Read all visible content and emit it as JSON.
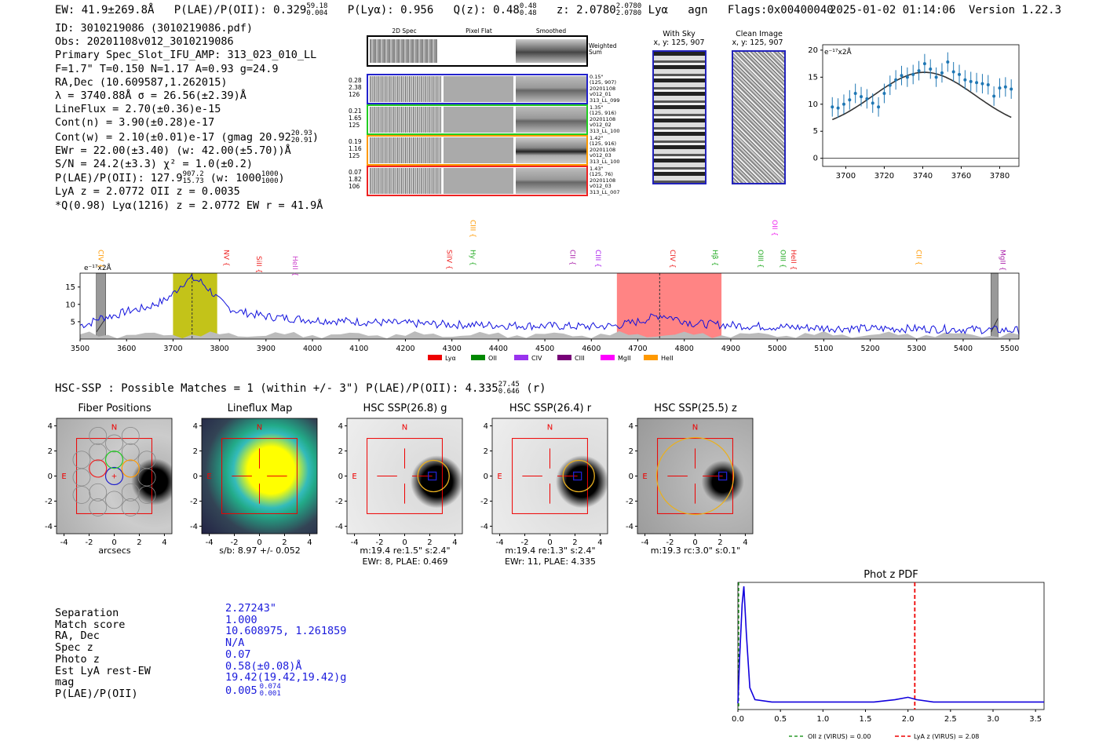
{
  "header": {
    "ew": "EW: 41.9±269.8Å",
    "plae_label": "P(LAE)/P(OII): 0.329",
    "plae_hi": "59.18",
    "plae_lo": "0.004",
    "plya": "P(Lyα): 0.956",
    "qz_label": "Q(z): 0.48",
    "qz_hi": "0.48",
    "qz_lo": "0.48",
    "z_label": "z: 2.0780",
    "z_hi": "2.0780",
    "z_lo": "2.0780",
    "line": "Lyα",
    "agn": "agn",
    "flags": "Flags:0x00400040",
    "datetime": "2025-01-02 01:14:06",
    "version": "Version 1.22.3"
  },
  "info": {
    "l1": "ID: 3010219086 (3010219086.pdf)",
    "l2": "Obs: 20201108v012_3010219086",
    "l3": "Primary Spec_Slot_IFU_AMP: 313_023_010_LL",
    "l4": "F=1.7\"  T=0.150  N=1.17  A=0.93  g=24.9",
    "l5": "RA,Dec (10.609587,1.262015)",
    "l6": "λ = 3740.88Å  σ = 26.56(±2.39)Å",
    "l7": "LineFlux = 2.70(±0.36)e-15",
    "l8": "Cont(n) = 3.90(±0.28)e-17",
    "l9": "Cont(w) = 2.10(±0.01)e-17 (gmag 20.92",
    "l9_hi": "20.93",
    "l9_lo": "20.91",
    "l10": "EWr = 22.00(±3.40) (w: 42.00(±5.70))Å",
    "l11": "S/N = 24.2(±3.3)  χ² = 1.0(±0.2)",
    "l12": "P(LAE)/P(OII): 127.9",
    "l12_hi": "907.2",
    "l12_lo": "15.73",
    "l12_w": "(w: 1000",
    "l12_whi": "1000",
    "l12_wlo": "1000",
    "l13": "LyA z = 2.0772  OII z = 0.0035",
    "l14": "*Q(0.98) Lyα(1216) z = 2.0772  EW r = 41.9Å"
  },
  "spec2d": {
    "col1": "2D Spec",
    "col2": "Pixel Flat",
    "col3": "Smoothed",
    "weighted": "Weighted\nSum",
    "rows": [
      {
        "color": "#2222cc",
        "left": [
          "0.28",
          "2.38",
          "126"
        ],
        "right": [
          "0.15\"",
          "(125, 907)",
          "20201108",
          "v012_01",
          "313_LL_099"
        ]
      },
      {
        "color": "#22cc22",
        "left": [
          "0.21",
          "1.65",
          "125"
        ],
        "right": [
          "1.35\"",
          "(125, 916)",
          "20201108",
          "v012_02",
          "313_LL_100"
        ]
      },
      {
        "color": "#ff9900",
        "left": [
          "0.19",
          "1.16",
          "125"
        ],
        "right": [
          "1.42\"",
          "(125, 916)",
          "20201108",
          "v012_03",
          "313_LL_100"
        ]
      },
      {
        "color": "#ee2222",
        "left": [
          "0.07",
          "1.82",
          "106"
        ],
        "right": [
          "1.43\"",
          "(125, 76)",
          "20201108",
          "v012_03",
          "313_LL_007"
        ]
      }
    ]
  },
  "skyimg": {
    "with_sky_title": "With Sky",
    "with_sky_xy": "x, y: 125, 907",
    "clean_title": "Clean Image",
    "clean_xy": "x, y: 125, 907"
  },
  "zoom_chart": {
    "ylabel": "e⁻¹⁷x2Å",
    "xticks": [
      "3700",
      "3720",
      "3740",
      "3760",
      "3780"
    ],
    "yticks": [
      "0",
      "5",
      "10",
      "15",
      "20"
    ]
  },
  "chart_data": [
    {
      "type": "scatter",
      "xlim": [
        3688,
        3790
      ],
      "ylim": [
        -1.5,
        21
      ],
      "x": [
        3693,
        3696,
        3699,
        3702,
        3705,
        3708,
        3711,
        3714,
        3717,
        3720,
        3723,
        3726,
        3729,
        3732,
        3735,
        3738,
        3741,
        3744,
        3747,
        3750,
        3753,
        3756,
        3759,
        3762,
        3765,
        3768,
        3771,
        3774,
        3777,
        3780,
        3783,
        3786
      ],
      "y": [
        9.5,
        9.3,
        10.0,
        10.8,
        12.0,
        11.4,
        11.0,
        10.2,
        9.5,
        12.0,
        13.5,
        14.5,
        15.3,
        15.0,
        15.5,
        16.2,
        17.5,
        16.5,
        15.0,
        15.8,
        17.8,
        16.0,
        15.5,
        14.5,
        14.2,
        14.0,
        13.8,
        13.6,
        11.5,
        13.0,
        13.2,
        12.8
      ],
      "yerr": 1.8,
      "model": {
        "center": 3740.88,
        "sigma": 26.56,
        "peak": 15.9,
        "base": 5.0
      }
    },
    {
      "type": "line",
      "xlim": [
        3500,
        5520
      ],
      "ylim": [
        0,
        19
      ],
      "xticks": [
        3500,
        3600,
        3700,
        3800,
        3900,
        4000,
        4100,
        4200,
        4300,
        4400,
        4500,
        4600,
        4700,
        4800,
        4900,
        5000,
        5100,
        5200,
        5300,
        5400,
        5500
      ],
      "yticks": [
        5,
        10,
        15
      ],
      "ylabel": "e⁻¹⁷x2Å",
      "spectrum": [
        [
          3500,
          4
        ],
        [
          3520,
          4.5
        ],
        [
          3540,
          6
        ],
        [
          3560,
          6.5
        ],
        [
          3580,
          7
        ],
        [
          3600,
          8
        ],
        [
          3620,
          8.5
        ],
        [
          3640,
          9
        ],
        [
          3660,
          10
        ],
        [
          3680,
          11
        ],
        [
          3700,
          13
        ],
        [
          3720,
          16
        ],
        [
          3740,
          17.5
        ],
        [
          3760,
          16.5
        ],
        [
          3780,
          14
        ],
        [
          3800,
          11
        ],
        [
          3820,
          9
        ],
        [
          3840,
          8
        ],
        [
          3860,
          7.5
        ],
        [
          3880,
          7
        ],
        [
          3900,
          6.5
        ],
        [
          3950,
          6
        ],
        [
          4000,
          5.5
        ],
        [
          4100,
          5
        ],
        [
          4200,
          4.5
        ],
        [
          4300,
          4.2
        ],
        [
          4400,
          4
        ],
        [
          4500,
          3.8
        ],
        [
          4600,
          3.6
        ],
        [
          4650,
          3.8
        ],
        [
          4700,
          5
        ],
        [
          4750,
          7
        ],
        [
          4780,
          6
        ],
        [
          4820,
          4.5
        ],
        [
          4900,
          4
        ],
        [
          5000,
          3.5
        ],
        [
          5100,
          3.2
        ],
        [
          5200,
          3
        ],
        [
          5300,
          3
        ],
        [
          5400,
          2.8
        ],
        [
          5520,
          2.5
        ]
      ],
      "highlights": [
        {
          "x0": 3700,
          "x1": 3795,
          "color": "#bcbc00"
        },
        {
          "x0": 4655,
          "x1": 4880,
          "color": "#f77"
        }
      ],
      "masked": [
        [
          3535,
          3555
        ],
        [
          5460,
          5475
        ]
      ],
      "markers": [
        3741,
        4747
      ],
      "lines_top": [
        {
          "label": "CIV",
          "wl": 3540,
          "color": "#ff9900",
          "row": 1
        },
        {
          "label": "NV",
          "wl": 3810,
          "color": "#ee2222",
          "row": 1
        },
        {
          "label": "SiII",
          "wl": 3880,
          "color": "#ee2222",
          "row": 2
        },
        {
          "label": "HeII",
          "wl": 3958,
          "color": "#cc44cc",
          "row": 2
        },
        {
          "label": "SiIV",
          "wl": 4290,
          "color": "#ee2222",
          "row": 1
        },
        {
          "label": "Hy",
          "wl": 4340,
          "color": "#22aa22",
          "row": 1
        },
        {
          "label": "CIII",
          "wl": 4340,
          "color": "#ff9900",
          "row": 0
        },
        {
          "label": "CII",
          "wl": 4555,
          "color": "#aa22aa",
          "row": 1
        },
        {
          "label": "CIII",
          "wl": 4610,
          "color": "#aa22ee",
          "row": 1
        },
        {
          "label": "CIV",
          "wl": 4770,
          "color": "#ee2222",
          "row": 1
        },
        {
          "label": "Hβ",
          "wl": 4861,
          "color": "#22aa22",
          "row": 1
        },
        {
          "label": "OII",
          "wl": 4990,
          "color": "#ee22ee",
          "row": 0
        },
        {
          "label": "OIII",
          "wl": 4959,
          "color": "#22aa22",
          "row": 1
        },
        {
          "label": "OIII",
          "wl": 5007,
          "color": "#22aa22",
          "row": 1
        },
        {
          "label": "HeII",
          "wl": 5030,
          "color": "#ee2222",
          "row": 1
        },
        {
          "label": "CII",
          "wl": 5300,
          "color": "#ff9900",
          "row": 1
        },
        {
          "label": "MgII",
          "wl": 5480,
          "color": "#aa22aa",
          "row": 1
        }
      ],
      "legend": [
        {
          "label": "Lyα",
          "color": "#ee0000"
        },
        {
          "label": "OII",
          "color": "#008800"
        },
        {
          "label": "CIV",
          "color": "#9933ee"
        },
        {
          "label": "CIII",
          "color": "#770077"
        },
        {
          "label": "MgII",
          "color": "#ff00ff"
        },
        {
          "label": "HeII",
          "color": "#ff9900"
        }
      ]
    },
    {
      "type": "line",
      "title": "Phot z PDF",
      "xlim": [
        0,
        3.6
      ],
      "xticks": [
        "0.0",
        "0.5",
        "1.0",
        "1.5",
        "2.0",
        "2.5",
        "3.0",
        "3.5"
      ],
      "pdf": [
        [
          0,
          0.02
        ],
        [
          0.02,
          0.4
        ],
        [
          0.05,
          0.85
        ],
        [
          0.07,
          1.0
        ],
        [
          0.1,
          0.6
        ],
        [
          0.14,
          0.15
        ],
        [
          0.2,
          0.05
        ],
        [
          0.4,
          0.03
        ],
        [
          1.0,
          0.03
        ],
        [
          1.6,
          0.03
        ],
        [
          1.85,
          0.05
        ],
        [
          2.0,
          0.07
        ],
        [
          2.1,
          0.05
        ],
        [
          2.3,
          0.03
        ],
        [
          3.6,
          0.03
        ]
      ],
      "oii_z": 0.0,
      "lya_z": 2.08,
      "legend_oii": "OII z (VIRUS) = 0.00",
      "legend_lya": "LyA z (VIRUS) = 2.08"
    }
  ],
  "hsc": {
    "header": "HSC-SSP : Possible Matches = 1 (within +/- 3\")  P(LAE)/P(OII): 4.335",
    "header_hi": "27.45",
    "header_lo": "0.646",
    "header_band": "(r)",
    "panels": [
      {
        "title": "Fiber Positions",
        "caption1": "arcsecs",
        "caption2": ""
      },
      {
        "title": "Lineflux Map",
        "caption1": "s/b: 8.97 +/- 0.052",
        "caption2": ""
      },
      {
        "title": "HSC SSP(26.8) g",
        "caption1": "m:19.4  re:1.5\"  s:2.4\"",
        "caption2": "EWr: 8, PLAE: 0.469"
      },
      {
        "title": "HSC SSP(26.4) r",
        "caption1": "m:19.4  re:1.3\"  s:2.4\"",
        "caption2": "EWr: 11, PLAE: 4.335"
      },
      {
        "title": "HSC SSP(25.5) z",
        "caption1": "m:19.3 rc:3.0\"  s:0.1\"",
        "caption2": ""
      }
    ],
    "ticks": [
      "-4",
      "-2",
      "0",
      "2",
      "4"
    ],
    "n_label": "N",
    "e_label": "E"
  },
  "match": {
    "labels": [
      "Separation",
      "Match score",
      "RA, Dec",
      "Spec z",
      "Photo z",
      "Est LyA rest-EW",
      "mag",
      "P(LAE)/P(OII)"
    ],
    "values": [
      "2.27243\"",
      "1.000",
      "10.608975, 1.261859",
      "N/A",
      "0.07",
      "0.58(±0.08)Å",
      "19.42(19.42,19.42)g",
      "0.005"
    ],
    "plae_hi": "0.074",
    "plae_lo": "0.001"
  }
}
